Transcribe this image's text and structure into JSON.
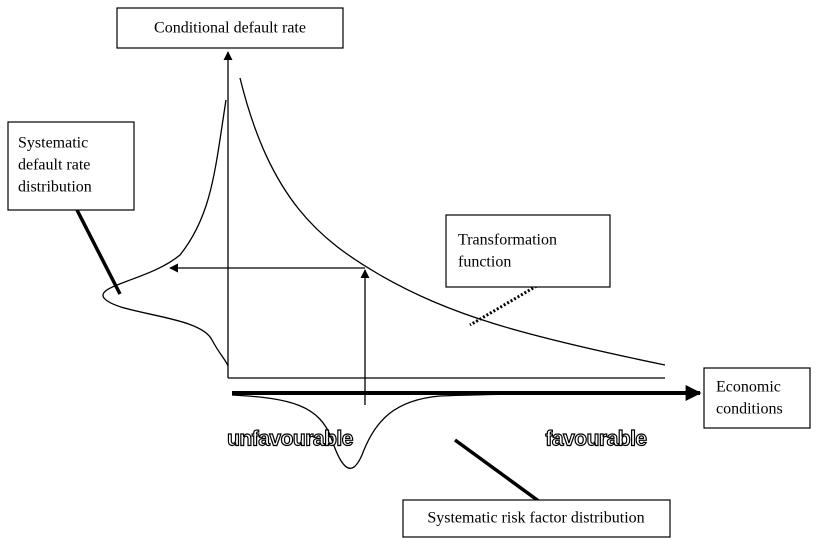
{
  "labels": {
    "y_axis": "Conditional default rate",
    "left_distribution": [
      "Systematic",
      "default rate",
      "distribution"
    ],
    "transformation": [
      "Transformation",
      "function"
    ],
    "x_axis": [
      "Economic",
      "conditions"
    ],
    "unfavourable": "unfavourable",
    "favourable": "favourable",
    "bottom_distribution": "Systematic risk factor distribution"
  }
}
